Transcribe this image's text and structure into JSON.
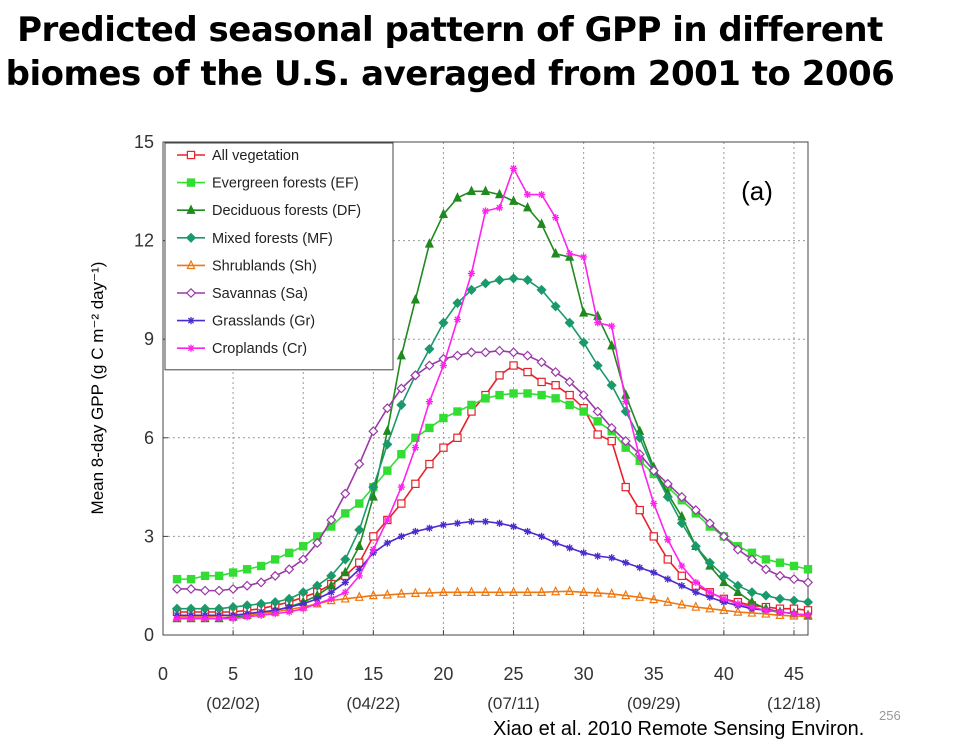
{
  "slide": {
    "title_line1": "Predicted seasonal pattern of GPP in different",
    "title_line2": "biomes of the U.S. averaged from 2001 to 2006",
    "page_number": "256",
    "citation": "Xiao et al. 2010 Remote Sensing Environ."
  },
  "chart_data": {
    "type": "line",
    "panel_label": "(a)",
    "ylabel": "Mean 8-day GPP (g C m⁻² day⁻¹)",
    "xlim": [
      0,
      46
    ],
    "ylim": [
      0,
      15
    ],
    "xticks": [
      0,
      5,
      10,
      15,
      20,
      25,
      30,
      35,
      40,
      45
    ],
    "yticks": [
      0,
      3,
      6,
      9,
      12,
      15
    ],
    "date_ticks": [
      {
        "x": 5,
        "label": "(02/02)"
      },
      {
        "x": 15,
        "label": "(04/22)"
      },
      {
        "x": 25,
        "label": "(07/11)"
      },
      {
        "x": 35,
        "label": "(09/29)"
      },
      {
        "x": 45,
        "label": "(12/18)"
      }
    ],
    "grid": true,
    "legend_position": "top-left",
    "x": [
      1,
      2,
      3,
      4,
      5,
      6,
      7,
      8,
      9,
      10,
      11,
      12,
      13,
      14,
      15,
      16,
      17,
      18,
      19,
      20,
      21,
      22,
      23,
      24,
      25,
      26,
      27,
      28,
      29,
      30,
      31,
      32,
      33,
      34,
      35,
      36,
      37,
      38,
      39,
      40,
      41,
      42,
      43,
      44,
      45,
      46
    ],
    "series": [
      {
        "name": "All vegetation",
        "color": "#e8202a",
        "marker": "square-open",
        "values": [
          0.7,
          0.7,
          0.7,
          0.7,
          0.7,
          0.75,
          0.8,
          0.9,
          1.0,
          1.15,
          1.3,
          1.55,
          1.8,
          2.2,
          3.0,
          3.5,
          4.0,
          4.6,
          5.2,
          5.7,
          6.0,
          6.8,
          7.3,
          7.9,
          8.2,
          8.0,
          7.7,
          7.6,
          7.3,
          6.9,
          6.1,
          5.9,
          4.5,
          3.8,
          3.0,
          2.3,
          1.8,
          1.5,
          1.3,
          1.1,
          1.0,
          0.9,
          0.85,
          0.8,
          0.8,
          0.75
        ]
      },
      {
        "name": "Evergreen forests (EF)",
        "color": "#33dd33",
        "marker": "square",
        "values": [
          1.7,
          1.7,
          1.8,
          1.8,
          1.9,
          2.0,
          2.1,
          2.3,
          2.5,
          2.7,
          3.0,
          3.3,
          3.7,
          4.0,
          4.5,
          5.0,
          5.5,
          6.0,
          6.3,
          6.6,
          6.8,
          7.0,
          7.2,
          7.3,
          7.35,
          7.35,
          7.3,
          7.2,
          7.0,
          6.8,
          6.5,
          6.2,
          5.7,
          5.3,
          4.9,
          4.5,
          4.1,
          3.7,
          3.3,
          3.0,
          2.7,
          2.5,
          2.3,
          2.2,
          2.1,
          2.0
        ]
      },
      {
        "name": "Deciduous forests (DF)",
        "color": "#1f8a1f",
        "marker": "triangle",
        "values": [
          0.5,
          0.5,
          0.5,
          0.5,
          0.55,
          0.6,
          0.65,
          0.75,
          0.85,
          1.0,
          1.2,
          1.5,
          1.9,
          2.7,
          4.2,
          6.2,
          8.5,
          10.2,
          11.9,
          12.8,
          13.3,
          13.5,
          13.5,
          13.4,
          13.2,
          13.0,
          12.5,
          11.6,
          11.5,
          9.8,
          9.7,
          8.8,
          7.3,
          6.2,
          5.1,
          4.3,
          3.6,
          2.7,
          2.1,
          1.6,
          1.3,
          1.0,
          0.8,
          0.7,
          0.65,
          0.6
        ]
      },
      {
        "name": "Mixed forests (MF)",
        "color": "#1a9a6a",
        "marker": "diamond",
        "values": [
          0.8,
          0.8,
          0.8,
          0.8,
          0.85,
          0.9,
          0.95,
          1.0,
          1.1,
          1.3,
          1.5,
          1.8,
          2.3,
          3.2,
          4.5,
          5.8,
          7.0,
          7.9,
          8.7,
          9.5,
          10.1,
          10.5,
          10.7,
          10.8,
          10.85,
          10.8,
          10.5,
          10.0,
          9.5,
          8.9,
          8.2,
          7.6,
          6.8,
          6.0,
          5.0,
          4.2,
          3.4,
          2.7,
          2.2,
          1.8,
          1.5,
          1.3,
          1.2,
          1.1,
          1.05,
          1.0
        ]
      },
      {
        "name": "Shrublands (Sh)",
        "color": "#ee7711",
        "marker": "triangle-open",
        "values": [
          0.55,
          0.55,
          0.55,
          0.58,
          0.6,
          0.62,
          0.65,
          0.7,
          0.78,
          0.85,
          0.95,
          1.05,
          1.1,
          1.15,
          1.2,
          1.22,
          1.25,
          1.27,
          1.28,
          1.3,
          1.3,
          1.3,
          1.3,
          1.3,
          1.3,
          1.3,
          1.3,
          1.32,
          1.33,
          1.3,
          1.28,
          1.25,
          1.2,
          1.15,
          1.08,
          1.0,
          0.92,
          0.85,
          0.8,
          0.75,
          0.7,
          0.67,
          0.64,
          0.6,
          0.58,
          0.57
        ]
      },
      {
        "name": "Savannas (Sa)",
        "color": "#9a3aa8",
        "marker": "diamond-open",
        "values": [
          1.4,
          1.4,
          1.35,
          1.35,
          1.4,
          1.5,
          1.6,
          1.8,
          2.0,
          2.3,
          2.8,
          3.5,
          4.3,
          5.2,
          6.2,
          6.9,
          7.5,
          7.9,
          8.2,
          8.4,
          8.5,
          8.6,
          8.6,
          8.65,
          8.6,
          8.5,
          8.3,
          8.0,
          7.7,
          7.3,
          6.8,
          6.3,
          5.9,
          5.5,
          5.0,
          4.6,
          4.2,
          3.8,
          3.4,
          3.0,
          2.6,
          2.3,
          2.0,
          1.8,
          1.7,
          1.6
        ]
      },
      {
        "name": "Grasslands (Gr)",
        "color": "#4b2ad0",
        "marker": "star",
        "values": [
          0.6,
          0.6,
          0.6,
          0.6,
          0.6,
          0.65,
          0.7,
          0.75,
          0.85,
          0.95,
          1.1,
          1.3,
          1.6,
          2.0,
          2.5,
          2.8,
          3.0,
          3.15,
          3.25,
          3.35,
          3.4,
          3.45,
          3.45,
          3.4,
          3.3,
          3.15,
          3.0,
          2.8,
          2.65,
          2.5,
          2.4,
          2.35,
          2.2,
          2.05,
          1.9,
          1.7,
          1.5,
          1.3,
          1.15,
          1.0,
          0.9,
          0.8,
          0.75,
          0.7,
          0.65,
          0.6
        ]
      },
      {
        "name": "Croplands (Cr)",
        "color": "#ff22ee",
        "marker": "star",
        "values": [
          0.5,
          0.5,
          0.5,
          0.5,
          0.5,
          0.55,
          0.6,
          0.65,
          0.7,
          0.8,
          0.95,
          1.1,
          1.3,
          1.8,
          2.6,
          3.5,
          4.5,
          5.7,
          7.1,
          8.2,
          9.6,
          11.0,
          12.9,
          13.0,
          14.2,
          13.4,
          13.4,
          12.7,
          11.6,
          11.5,
          9.5,
          9.4,
          7.1,
          5.4,
          4.0,
          2.9,
          2.1,
          1.6,
          1.3,
          1.1,
          0.95,
          0.85,
          0.75,
          0.7,
          0.65,
          0.6
        ]
      }
    ]
  }
}
